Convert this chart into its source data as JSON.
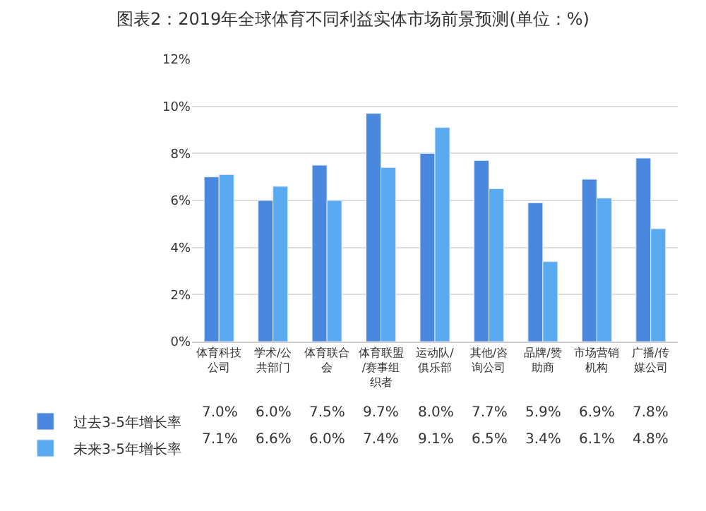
{
  "chart_data": {
    "type": "bar",
    "title": "图表2：2019年全球体育不同利益实体市场前景预测(单位：%)",
    "categories": [
      "体育科技公司",
      "学术/公共部门",
      "体育联合会",
      "体育联盟/赛事组织者",
      "运动队/俱乐部",
      "其他/咨询公司",
      "品牌/赞助商",
      "市场营销机构",
      "广播/传媒公司"
    ],
    "series": [
      {
        "name": "过去3-5年增长率",
        "color": "#4a88e0",
        "values": [
          7.0,
          6.0,
          7.5,
          9.7,
          8.0,
          7.7,
          5.9,
          6.9,
          7.8
        ],
        "value_labels": [
          "7.0%",
          "6.0%",
          "7.5%",
          "9.7%",
          "8.0%",
          "7.7%",
          "5.9%",
          "6.9%",
          "7.8%"
        ]
      },
      {
        "name": "未来3-5年增长率",
        "color": "#5aaaf2",
        "values": [
          7.1,
          6.6,
          6.0,
          7.4,
          9.1,
          6.5,
          3.4,
          6.1,
          4.8
        ],
        "value_labels": [
          "7.1%",
          "6.6%",
          "6.0%",
          "7.4%",
          "9.1%",
          "6.5%",
          "3.4%",
          "6.1%",
          "4.8%"
        ]
      }
    ],
    "ylim": [
      0,
      12
    ],
    "yticks": [
      {
        "value": 0,
        "label": "0%"
      },
      {
        "value": 2,
        "label": "2%"
      },
      {
        "value": 4,
        "label": "4%"
      },
      {
        "value": 6,
        "label": "6%"
      },
      {
        "value": 8,
        "label": "8%"
      },
      {
        "value": 10,
        "label": "10%"
      },
      {
        "value": 12,
        "label": "12%"
      }
    ],
    "grid": "y",
    "legend": "bottom left"
  }
}
